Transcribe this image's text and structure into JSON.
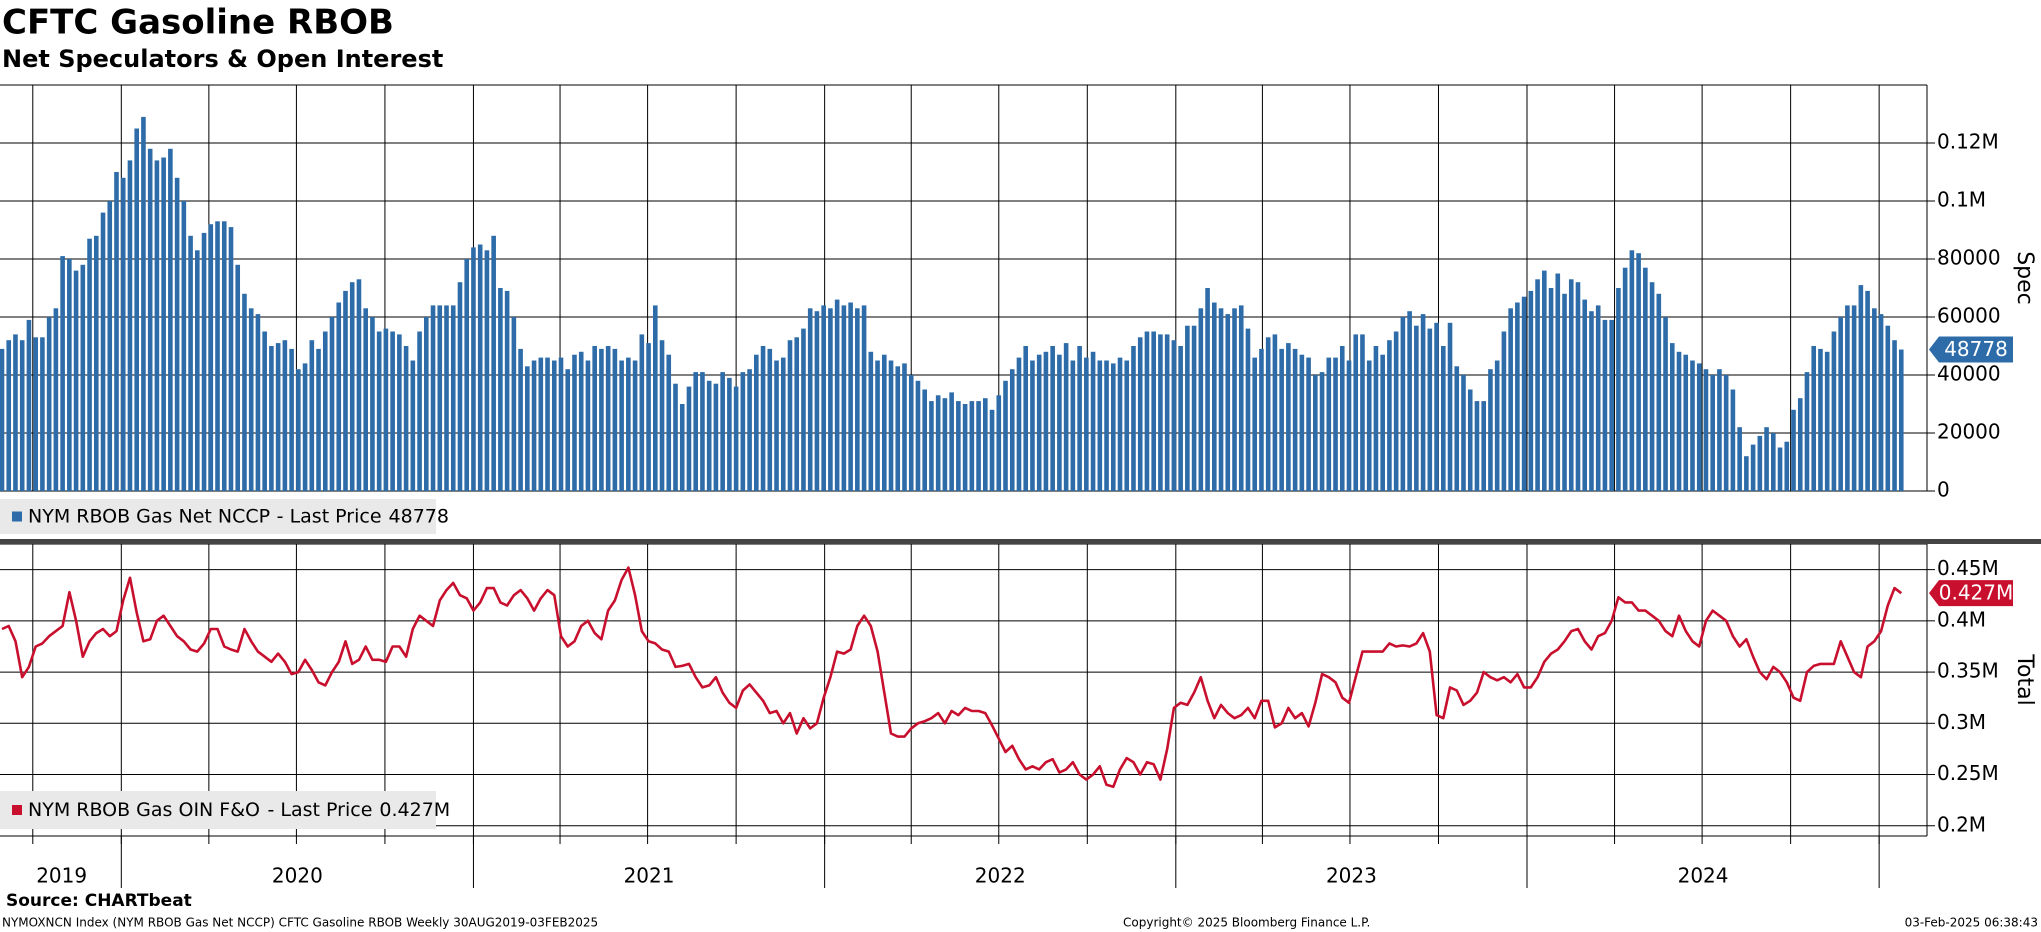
{
  "title": "CFTC Gasoline RBOB",
  "subtitle": "Net Speculators & Open Interest",
  "source": "Source: CHARTbeat",
  "footer": {
    "left": "NYMOXNCN Index (NYM RBOB Gas Net NCCP) CFTC Gasoline RBOB  Weekly 30AUG2019-03FEB2025",
    "center": "Copyright© 2025 Bloomberg Finance L.P.",
    "right": "03-Feb-2025 06:38:43"
  },
  "last_price_text": "- Last Price",
  "x_labels": [
    "2019",
    "2020",
    "2021",
    "2022",
    "2023",
    "2024"
  ],
  "chart_data": [
    {
      "type": "bar",
      "axis_label": "Spec",
      "ylim": [
        0,
        140000
      ],
      "yticks": [
        0,
        20000,
        40000,
        60000,
        80000,
        {
          "value": 100000,
          "label": "0.1M"
        },
        {
          "value": 120000,
          "label": "0.12M"
        }
      ],
      "grid": true,
      "series": [
        {
          "name": "NYM RBOB Gas Net NCCP",
          "color": "#2d6ca8",
          "last_label": "48778",
          "values": [
            49000,
            52000,
            54000,
            52000,
            59000,
            53000,
            53000,
            60000,
            63000,
            81000,
            80000,
            76000,
            78000,
            87000,
            88000,
            96000,
            100000,
            110000,
            108000,
            114000,
            125000,
            129000,
            118000,
            114000,
            115000,
            118000,
            108000,
            100000,
            88000,
            83000,
            89000,
            92000,
            93000,
            93000,
            91000,
            78000,
            68000,
            63000,
            61000,
            55000,
            50000,
            51000,
            52000,
            49000,
            42000,
            44000,
            52000,
            49000,
            55000,
            60000,
            65000,
            69000,
            72000,
            73000,
            63000,
            60000,
            55000,
            56000,
            55000,
            54000,
            50000,
            45000,
            55000,
            60000,
            64000,
            64000,
            64000,
            64000,
            72000,
            80000,
            84000,
            85000,
            83000,
            88000,
            70000,
            69000,
            60000,
            49000,
            43000,
            45000,
            46000,
            46000,
            45000,
            46000,
            42000,
            47000,
            48000,
            45000,
            50000,
            49000,
            50000,
            49000,
            45000,
            46000,
            45000,
            54000,
            51000,
            64000,
            52000,
            47000,
            37000,
            30000,
            36000,
            41000,
            41000,
            38000,
            37000,
            41000,
            39000,
            36000,
            41000,
            42000,
            47000,
            50000,
            49000,
            45000,
            46000,
            52000,
            53000,
            56000,
            63000,
            62000,
            64000,
            63000,
            66000,
            64000,
            65000,
            63000,
            64000,
            48000,
            45000,
            47000,
            45000,
            43000,
            44000,
            40000,
            38000,
            35000,
            31000,
            33000,
            32000,
            34000,
            31000,
            30000,
            31000,
            31000,
            32000,
            28000,
            33000,
            38000,
            42000,
            46000,
            50000,
            45000,
            47000,
            48000,
            50000,
            47000,
            51000,
            45000,
            50000,
            46000,
            48000,
            45000,
            45000,
            44000,
            46000,
            45000,
            50000,
            53000,
            55000,
            55000,
            54000,
            54000,
            52000,
            50000,
            57000,
            57000,
            63000,
            70000,
            65000,
            63000,
            61000,
            63000,
            64000,
            56000,
            46000,
            49000,
            53000,
            54000,
            49000,
            51000,
            49000,
            47000,
            46000,
            40000,
            41000,
            46000,
            46000,
            50000,
            45000,
            54000,
            54000,
            45000,
            50000,
            47000,
            52000,
            55000,
            60000,
            62000,
            57000,
            61000,
            56000,
            58000,
            50000,
            58000,
            43000,
            40000,
            35000,
            31000,
            31000,
            42000,
            45000,
            55000,
            63000,
            65000,
            67000,
            69000,
            73000,
            76000,
            70000,
            75000,
            68000,
            73000,
            72000,
            66000,
            62000,
            64000,
            59000,
            59000,
            70000,
            77000,
            83000,
            82000,
            77000,
            72000,
            68000,
            60000,
            51000,
            48000,
            47000,
            45000,
            44000,
            42000,
            40000,
            42000,
            40000,
            35000,
            22000,
            12000,
            16000,
            19000,
            22000,
            20000,
            15000,
            17000,
            28000,
            32000,
            41000,
            50000,
            49000,
            48000,
            55000,
            60000,
            64000,
            64000,
            71000,
            69000,
            63000,
            61000,
            57000,
            52000,
            48778
          ]
        }
      ]
    },
    {
      "type": "line",
      "axis_label": "Total",
      "ylim": [
        190000,
        475000
      ],
      "yticks": [
        {
          "value": 200000,
          "label": "0.2M"
        },
        {
          "value": 250000,
          "label": "0.25M"
        },
        {
          "value": 300000,
          "label": "0.3M"
        },
        {
          "value": 350000,
          "label": "0.35M"
        },
        {
          "value": 400000,
          "label": "0.4M"
        },
        {
          "value": 450000,
          "label": "0.45M"
        }
      ],
      "grid": true,
      "series": [
        {
          "name": "NYM RBOB Gas OIN F&O",
          "color": "#c8102e",
          "last_label": "0.427M",
          "values": [
            392000,
            395000,
            380000,
            345000,
            355000,
            375000,
            378000,
            385000,
            390000,
            395000,
            428000,
            400000,
            365000,
            380000,
            388000,
            392000,
            385000,
            390000,
            420000,
            442000,
            408000,
            380000,
            382000,
            400000,
            405000,
            395000,
            385000,
            380000,
            372000,
            370000,
            378000,
            392000,
            392000,
            375000,
            372000,
            370000,
            392000,
            380000,
            370000,
            365000,
            360000,
            368000,
            360000,
            348000,
            350000,
            362000,
            352000,
            340000,
            337000,
            350000,
            360000,
            380000,
            358000,
            362000,
            375000,
            362000,
            362000,
            360000,
            375000,
            375000,
            365000,
            392000,
            405000,
            400000,
            395000,
            420000,
            430000,
            437000,
            425000,
            422000,
            410000,
            418000,
            432000,
            432000,
            418000,
            415000,
            425000,
            430000,
            422000,
            410000,
            422000,
            430000,
            425000,
            385000,
            375000,
            380000,
            395000,
            400000,
            388000,
            382000,
            410000,
            420000,
            440000,
            452000,
            425000,
            390000,
            380000,
            378000,
            372000,
            370000,
            355000,
            356000,
            358000,
            345000,
            335000,
            337000,
            345000,
            330000,
            320000,
            315000,
            332000,
            338000,
            330000,
            322000,
            310000,
            312000,
            300000,
            310000,
            290000,
            305000,
            295000,
            300000,
            325000,
            345000,
            370000,
            368000,
            372000,
            395000,
            405000,
            395000,
            370000,
            330000,
            290000,
            287000,
            287000,
            295000,
            300000,
            302000,
            305000,
            310000,
            300000,
            312000,
            308000,
            315000,
            312000,
            312000,
            310000,
            298000,
            285000,
            272000,
            278000,
            265000,
            255000,
            258000,
            255000,
            262000,
            265000,
            252000,
            255000,
            262000,
            250000,
            245000,
            250000,
            258000,
            240000,
            238000,
            255000,
            266000,
            262000,
            250000,
            262000,
            260000,
            245000,
            275000,
            315000,
            320000,
            318000,
            330000,
            345000,
            322000,
            305000,
            318000,
            310000,
            305000,
            308000,
            315000,
            305000,
            322000,
            322000,
            296000,
            300000,
            315000,
            305000,
            310000,
            297000,
            320000,
            348000,
            345000,
            340000,
            325000,
            320000,
            345000,
            370000,
            370000,
            370000,
            370000,
            378000,
            375000,
            376000,
            375000,
            378000,
            388000,
            370000,
            308000,
            305000,
            335000,
            332000,
            318000,
            322000,
            330000,
            350000,
            345000,
            342000,
            345000,
            340000,
            348000,
            335000,
            335000,
            345000,
            360000,
            368000,
            372000,
            380000,
            390000,
            392000,
            380000,
            372000,
            385000,
            388000,
            400000,
            423000,
            418000,
            418000,
            410000,
            410000,
            405000,
            400000,
            390000,
            385000,
            405000,
            390000,
            380000,
            375000,
            400000,
            410000,
            405000,
            400000,
            385000,
            375000,
            382000,
            365000,
            350000,
            343000,
            355000,
            350000,
            340000,
            325000,
            322000,
            350000,
            356000,
            358000,
            358000,
            358000,
            380000,
            365000,
            350000,
            345000,
            375000,
            380000,
            390000,
            415000,
            432000,
            427000
          ]
        }
      ]
    }
  ]
}
